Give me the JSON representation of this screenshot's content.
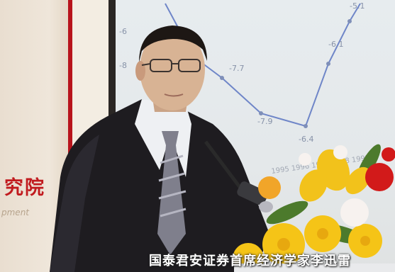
{
  "caption": "国泰君安证券首席经济学家李迅雷",
  "banner": {
    "title_fragment": "究院",
    "subtitle_fragment": "pment"
  },
  "projected_chart": {
    "labels": [
      "-7.7",
      "-7.9",
      "-6.4",
      "-6.1",
      "-5.1",
      "-8",
      "-6"
    ],
    "axis_text": "1995 1996 1997 1998 1999"
  },
  "colors": {
    "banner_red": "#c11b1f",
    "chart_line": "#6f86c8",
    "suit": "#1e1c20",
    "tie_stripe": "#9a9aa6",
    "flower_yellow": "#f2c21b",
    "flower_red": "#d21a1a"
  }
}
